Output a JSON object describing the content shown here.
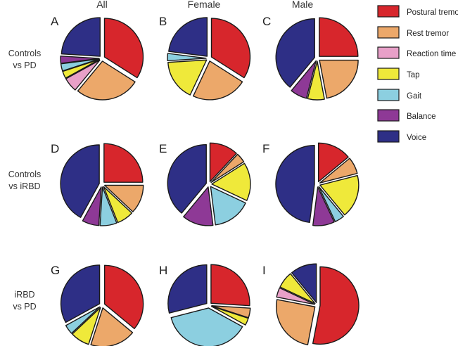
{
  "columns": [
    "All",
    "Female",
    "Male"
  ],
  "rows": [
    [
      "Controls",
      "vs PD"
    ],
    [
      "Controls",
      "vs iRBD"
    ],
    [
      "iRBD",
      "vs PD"
    ]
  ],
  "legend": [
    {
      "key": "postural",
      "label": "Postural tremor",
      "color": "#d7262c"
    },
    {
      "key": "rest",
      "label": "Rest tremor",
      "color": "#eca86a"
    },
    {
      "key": "reaction",
      "label": "Reaction time",
      "color": "#e8a0c8"
    },
    {
      "key": "tap",
      "label": "Tap",
      "color": "#efe93a"
    },
    {
      "key": "gait",
      "label": "Gait",
      "color": "#8ccfe0"
    },
    {
      "key": "balance",
      "label": "Balance",
      "color": "#8e3996"
    },
    {
      "key": "voice",
      "label": "Voice",
      "color": "#2e2f86"
    }
  ],
  "chart_data": [
    {
      "type": "pie",
      "panel": "A",
      "column": "All",
      "row": "Controls vs PD",
      "categories": [
        "Postural tremor",
        "Rest tremor",
        "Reaction time",
        "Tap",
        "Gait",
        "Balance",
        "Voice"
      ],
      "values": [
        34,
        27,
        6,
        3,
        3,
        3,
        24
      ]
    },
    {
      "type": "pie",
      "panel": "B",
      "column": "Female",
      "row": "Controls vs PD",
      "categories": [
        "Postural tremor",
        "Rest tremor",
        "Reaction time",
        "Tap",
        "Gait",
        "Balance",
        "Voice"
      ],
      "values": [
        34,
        23,
        0,
        17,
        3,
        0,
        23
      ]
    },
    {
      "type": "pie",
      "panel": "C",
      "column": "Male",
      "row": "Controls vs PD",
      "categories": [
        "Postural tremor",
        "Rest tremor",
        "Reaction time",
        "Tap",
        "Gait",
        "Balance",
        "Voice"
      ],
      "values": [
        25,
        22,
        0,
        7,
        0,
        7,
        39
      ]
    },
    {
      "type": "pie",
      "panel": "D",
      "column": "All",
      "row": "Controls vs iRBD",
      "categories": [
        "Postural tremor",
        "Rest tremor",
        "Reaction time",
        "Tap",
        "Gait",
        "Balance",
        "Voice"
      ],
      "values": [
        25,
        12,
        0,
        7,
        7,
        7,
        42
      ]
    },
    {
      "type": "pie",
      "panel": "E",
      "column": "Female",
      "row": "Controls vs iRBD",
      "categories": [
        "Postural tremor",
        "Rest tremor",
        "Reaction time",
        "Tap",
        "Gait",
        "Balance",
        "Voice"
      ],
      "values": [
        12,
        4,
        0,
        16,
        16,
        13,
        39
      ]
    },
    {
      "type": "pie",
      "panel": "F",
      "column": "Male",
      "row": "Controls vs iRBD",
      "categories": [
        "Postural tremor",
        "Rest tremor",
        "Reaction time",
        "Tap",
        "Gait",
        "Balance",
        "Voice"
      ],
      "values": [
        14,
        7,
        0,
        18,
        4,
        9,
        48
      ]
    },
    {
      "type": "pie",
      "panel": "G",
      "column": "All",
      "row": "iRBD vs PD",
      "categories": [
        "Postural tremor",
        "Rest tremor",
        "Reaction time",
        "Tap",
        "Gait",
        "Balance",
        "Voice"
      ],
      "values": [
        36,
        19,
        0,
        8,
        4,
        0,
        33
      ]
    },
    {
      "type": "pie",
      "panel": "H",
      "column": "Female",
      "row": "iRBD vs PD",
      "categories": [
        "Postural tremor",
        "Rest tremor",
        "Reaction time",
        "Tap",
        "Gait",
        "Balance",
        "Voice"
      ],
      "values": [
        26,
        4,
        0,
        3,
        38,
        0,
        29
      ]
    },
    {
      "type": "pie",
      "panel": "I",
      "column": "Male",
      "row": "iRBD vs PD",
      "categories": [
        "Postural tremor",
        "Rest tremor",
        "Reaction time",
        "Tap",
        "Gait",
        "Balance",
        "Voice"
      ],
      "values": [
        53,
        25,
        4,
        7,
        0,
        0,
        11
      ]
    }
  ]
}
